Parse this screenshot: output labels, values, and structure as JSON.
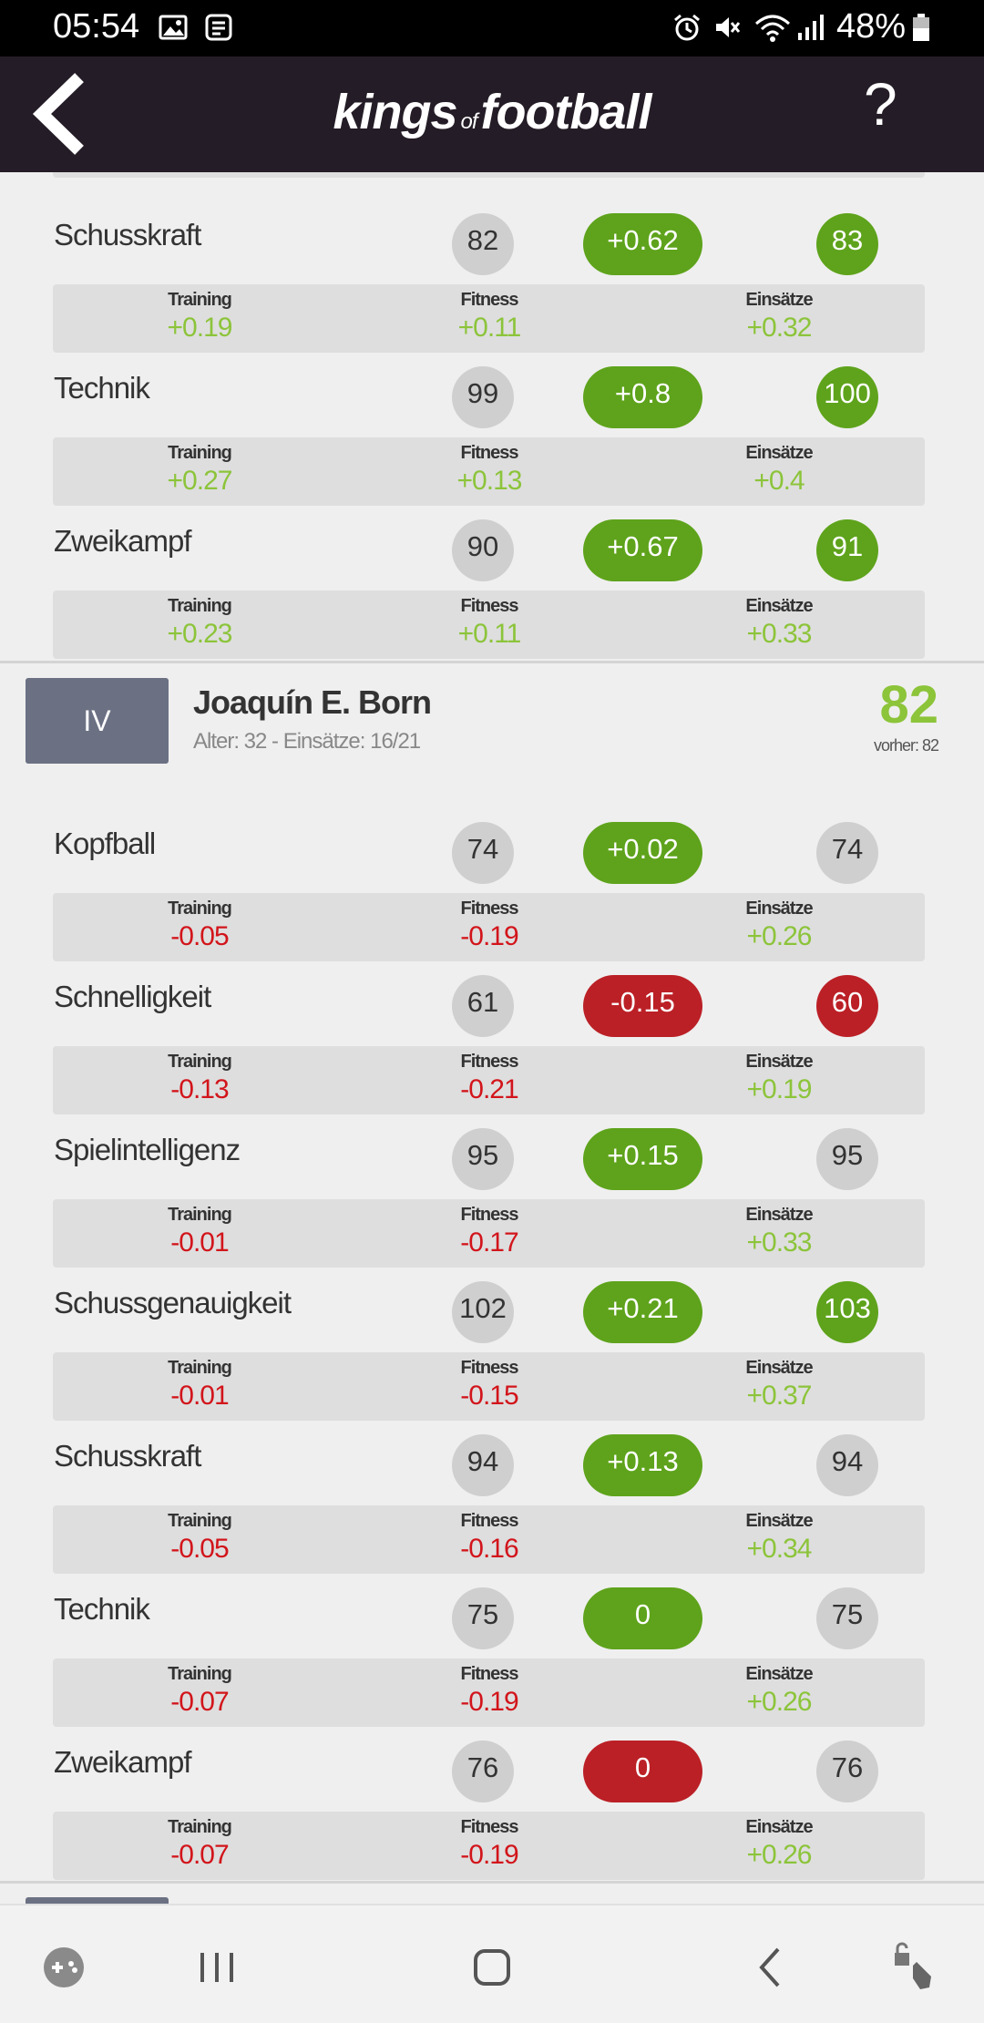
{
  "status_bar": {
    "time": "05:54",
    "battery": "48%"
  },
  "header": {
    "logo_main1": "kings",
    "logo_of": "of",
    "logo_main2": "football",
    "help": "?"
  },
  "top_rows": [
    {
      "name": "Schusskraft",
      "old": "82",
      "delta": "+0.62",
      "delta_color": "green",
      "new": "83",
      "new_color": "green",
      "training_label": "Training",
      "training": "+0.19",
      "fitness_label": "Fitness",
      "fitness": "+0.11",
      "einsaetze_label": "Einsätze",
      "einsaetze": "+0.32"
    },
    {
      "name": "Technik",
      "old": "99",
      "delta": "+0.8",
      "delta_color": "green",
      "new": "100",
      "new_color": "green",
      "training_label": "Training",
      "training": "+0.27",
      "fitness_label": "Fitness",
      "fitness": "+0.13",
      "einsaetze_label": "Einsätze",
      "einsaetze": "+0.4"
    },
    {
      "name": "Zweikampf",
      "old": "90",
      "delta": "+0.67",
      "delta_color": "green",
      "new": "91",
      "new_color": "green",
      "training_label": "Training",
      "training": "+0.23",
      "fitness_label": "Fitness",
      "fitness": "+0.11",
      "einsaetze_label": "Einsätze",
      "einsaetze": "+0.33"
    }
  ],
  "player": {
    "position": "IV",
    "name": "Joaquín E. Born",
    "info": "Alter: 32 - Einsätze: 16/21",
    "rating": "82",
    "previous": "vorher: 82"
  },
  "player_rows": [
    {
      "name": "Kopfball",
      "old": "74",
      "delta": "+0.02",
      "delta_color": "green",
      "new": "74",
      "new_color": "grey",
      "training_label": "Training",
      "training": "-0.05",
      "fitness_label": "Fitness",
      "fitness": "-0.19",
      "einsaetze_label": "Einsätze",
      "einsaetze": "+0.26"
    },
    {
      "name": "Schnelligkeit",
      "old": "61",
      "delta": "-0.15",
      "delta_color": "red",
      "new": "60",
      "new_color": "red",
      "training_label": "Training",
      "training": "-0.13",
      "fitness_label": "Fitness",
      "fitness": "-0.21",
      "einsaetze_label": "Einsätze",
      "einsaetze": "+0.19"
    },
    {
      "name": "Spielintelligenz",
      "old": "95",
      "delta": "+0.15",
      "delta_color": "green",
      "new": "95",
      "new_color": "grey",
      "training_label": "Training",
      "training": "-0.01",
      "fitness_label": "Fitness",
      "fitness": "-0.17",
      "einsaetze_label": "Einsätze",
      "einsaetze": "+0.33"
    },
    {
      "name": "Schussgenauigkeit",
      "old": "102",
      "delta": "+0.21",
      "delta_color": "green",
      "new": "103",
      "new_color": "green",
      "training_label": "Training",
      "training": "-0.01",
      "fitness_label": "Fitness",
      "fitness": "-0.15",
      "einsaetze_label": "Einsätze",
      "einsaetze": "+0.37"
    },
    {
      "name": "Schusskraft",
      "old": "94",
      "delta": "+0.13",
      "delta_color": "green",
      "new": "94",
      "new_color": "grey",
      "training_label": "Training",
      "training": "-0.05",
      "fitness_label": "Fitness",
      "fitness": "-0.16",
      "einsaetze_label": "Einsätze",
      "einsaetze": "+0.34"
    },
    {
      "name": "Technik",
      "old": "75",
      "delta": "0",
      "delta_color": "green",
      "new": "75",
      "new_color": "grey",
      "training_label": "Training",
      "training": "-0.07",
      "fitness_label": "Fitness",
      "fitness": "-0.19",
      "einsaetze_label": "Einsätze",
      "einsaetze": "+0.26"
    },
    {
      "name": "Zweikampf",
      "old": "76",
      "delta": "0",
      "delta_color": "red",
      "new": "76",
      "new_color": "grey",
      "training_label": "Training",
      "training": "-0.07",
      "fitness_label": "Fitness",
      "fitness": "-0.19",
      "einsaetze_label": "Einsätze",
      "einsaetze": "+0.26"
    }
  ],
  "icons": {
    "back": "chevron-left-icon",
    "help": "help-icon",
    "gallery": "image-icon",
    "message": "message-icon",
    "alarm": "alarm-icon",
    "mute": "mute-icon",
    "wifi": "wifi-icon",
    "signal": "signal-icon",
    "battery": "battery-icon",
    "game": "game-launcher-icon",
    "recents": "recents-icon",
    "home": "home-icon",
    "nav_back": "nav-back-icon",
    "assist": "assistant-lock-icon"
  },
  "colors": {
    "header_bg": "#241c26",
    "green": "#5ea31b",
    "red": "#bb2026",
    "positive_text": "#8cc43a",
    "negative_text": "#d2151b",
    "badge": "#6b7183"
  }
}
